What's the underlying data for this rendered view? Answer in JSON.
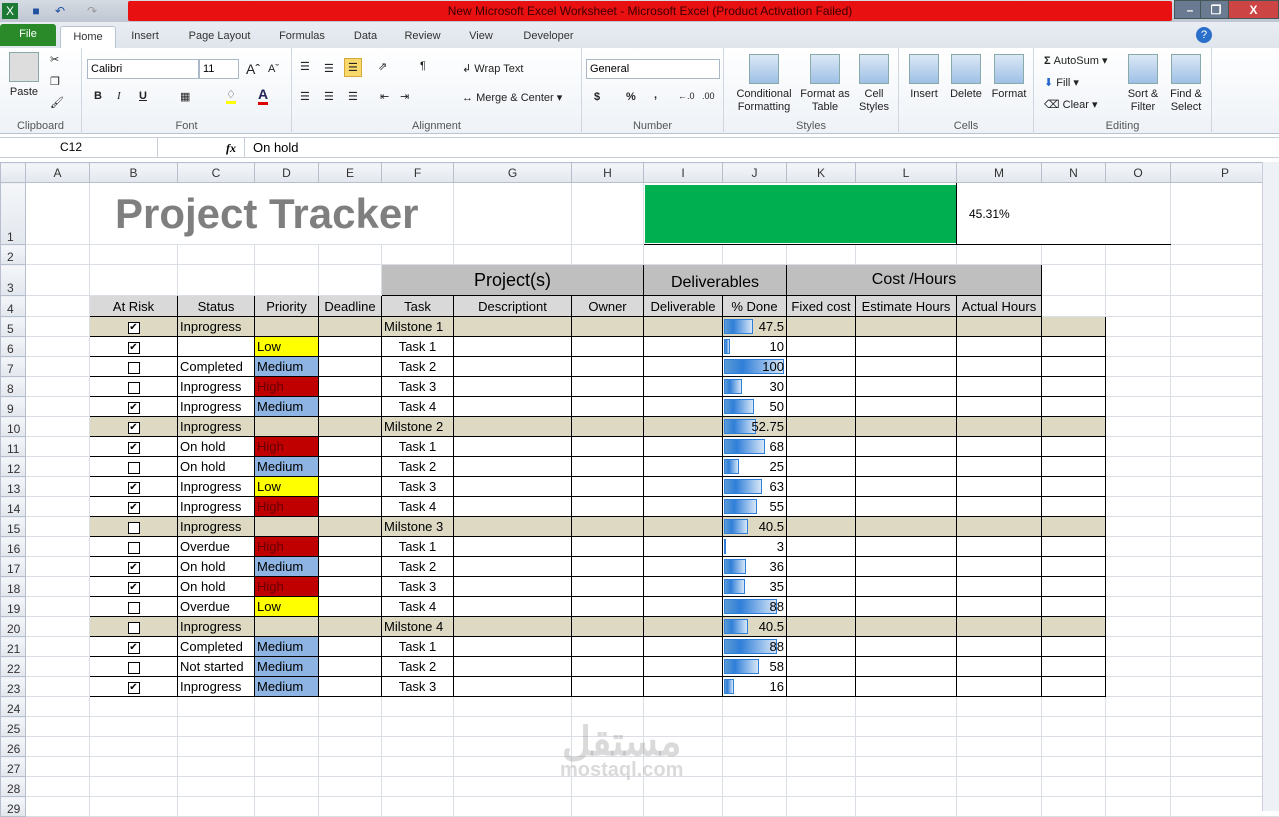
{
  "window": {
    "title": "New Microsoft Excel Worksheet  -  Microsoft Excel (Product Activation Failed)"
  },
  "tabs": [
    "File",
    "Home",
    "Insert",
    "Page Layout",
    "Formulas",
    "Data",
    "Review",
    "View",
    "Developer"
  ],
  "ribbon": {
    "clipboard": {
      "label": "Clipboard",
      "paste": "Paste"
    },
    "font": {
      "label": "Font",
      "name": "Calibri",
      "size": "11",
      "bold": "B",
      "italic": "I",
      "underline": "U"
    },
    "alignment": {
      "label": "Alignment",
      "wrap": "Wrap Text",
      "merge": "Merge & Center"
    },
    "number": {
      "label": "Number",
      "format": "General",
      "currency": "$",
      "percent": "%",
      "comma": ","
    },
    "styles": {
      "label": "Styles",
      "conditional": "Conditional Formatting",
      "format_table": "Format as Table",
      "cell_styles": "Cell Styles"
    },
    "cells": {
      "label": "Cells",
      "insert": "Insert",
      "delete": "Delete",
      "format": "Format"
    },
    "editing": {
      "label": "Editing",
      "autosum": "AutoSum",
      "fill": "Fill",
      "clear": "Clear",
      "sort": "Sort & Filter",
      "find": "Find & Select"
    }
  },
  "formula_bar": {
    "name_box": "C12",
    "fx": "fx",
    "value": "On hold"
  },
  "columns": [
    "A",
    "B",
    "C",
    "D",
    "E",
    "F",
    "G",
    "H",
    "I",
    "J",
    "K",
    "L",
    "M",
    "N",
    "O",
    "P"
  ],
  "sheet": {
    "title": "Project Tracker",
    "overall_progress": 45.31,
    "overall_progress_label": "45.31%",
    "section_headers": {
      "projects": "Project(s)",
      "deliverables": "Deliverables",
      "cost": "Cost /Hours"
    },
    "headers": [
      "At Risk",
      "Status",
      "Priority",
      "Deadline",
      "Task",
      "Descriptiont",
      "Owner",
      "Deliverable",
      "% Done",
      "Fixed cost",
      "Estimate Hours",
      "Actual Hours"
    ],
    "colors": {
      "low": "#ffff00",
      "medium": "#8db4e2",
      "high": "#c00000",
      "milestone": "#ddd9c3",
      "progress": "#00b050"
    },
    "rows": [
      {
        "risk": true,
        "status": "Inprogress",
        "priority": "",
        "task": "Milstone 1",
        "done": "47.5",
        "milestone": true
      },
      {
        "risk": true,
        "status": "",
        "priority": "Low",
        "task": "Task 1",
        "done": "10"
      },
      {
        "risk": false,
        "status": "Completed",
        "priority": "Medium",
        "task": "Task 2",
        "done": "100"
      },
      {
        "risk": false,
        "status": "Inprogress",
        "priority": "High",
        "task": "Task 3",
        "done": "30"
      },
      {
        "risk": true,
        "status": "Inprogress",
        "priority": "Medium",
        "task": "Task 4",
        "done": "50"
      },
      {
        "risk": true,
        "status": "Inprogress",
        "priority": "",
        "task": "Milstone 2",
        "done": "52.75",
        "milestone": true
      },
      {
        "risk": true,
        "status": "On hold",
        "priority": "High",
        "task": "Task 1",
        "done": "68"
      },
      {
        "risk": false,
        "status": "On hold",
        "priority": "Medium",
        "task": "Task 2",
        "done": "25"
      },
      {
        "risk": true,
        "status": "Inprogress",
        "priority": "Low",
        "task": "Task 3",
        "done": "63"
      },
      {
        "risk": true,
        "status": "Inprogress",
        "priority": "High",
        "task": "Task 4",
        "done": "55"
      },
      {
        "risk": false,
        "status": "Inprogress",
        "priority": "",
        "task": "Milstone 3",
        "done": "40.5",
        "milestone": true
      },
      {
        "risk": false,
        "status": "Overdue",
        "priority": "High",
        "task": "Task 1",
        "done": "3"
      },
      {
        "risk": true,
        "status": "On hold",
        "priority": "Medium",
        "task": "Task 2",
        "done": "36"
      },
      {
        "risk": true,
        "status": "On hold",
        "priority": "High",
        "task": "Task 3",
        "done": "35"
      },
      {
        "risk": false,
        "status": "Overdue",
        "priority": "Low",
        "task": "Task 4",
        "done": "88"
      },
      {
        "risk": false,
        "status": "Inprogress",
        "priority": "",
        "task": "Milstone 4",
        "done": "40.5",
        "milestone": true
      },
      {
        "risk": true,
        "status": "Completed",
        "priority": "Medium",
        "task": "Task 1",
        "done": "88"
      },
      {
        "risk": false,
        "status": "Not started",
        "priority": "Medium",
        "task": "Task 2",
        "done": "58"
      },
      {
        "risk": true,
        "status": "Inprogress",
        "priority": "Medium",
        "task": "Task 3",
        "done": "16"
      }
    ]
  },
  "watermark": {
    "arabic": "مستقل",
    "latin": "mostaql.com"
  }
}
